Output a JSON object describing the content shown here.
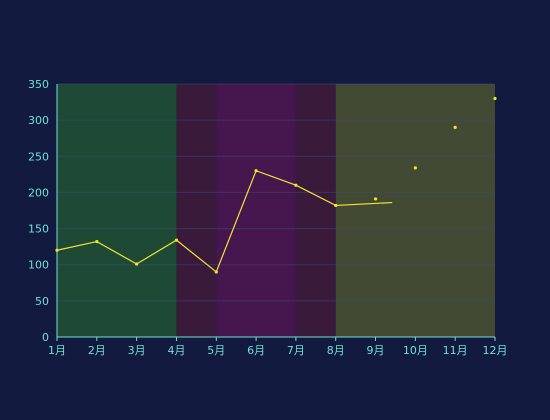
{
  "colors": {
    "background": "#131a3f",
    "axis_line": "#6fe0d6",
    "tick_label": "#6fe0d6",
    "grid": "#3a4a78",
    "line": "#f1e533",
    "point": "#f1e533"
  },
  "chart_data": {
    "type": "line",
    "title": "",
    "xlabel": "",
    "ylabel": "",
    "categories": [
      "1月",
      "2月",
      "3月",
      "4月",
      "5月",
      "6月",
      "7月",
      "8月",
      "9月",
      "10月",
      "11月",
      "12月"
    ],
    "ylim": [
      0,
      350
    ],
    "yticks": [
      0,
      50,
      100,
      150,
      200,
      250,
      300,
      350
    ],
    "grid": true,
    "series": [
      {
        "name": "",
        "values": [
          120,
          132,
          101,
          134,
          90,
          230,
          210,
          182,
          191,
          234,
          290,
          330
        ],
        "connected_until_index": 7,
        "extends_to_x": 8.42,
        "extend_value": 186
      }
    ],
    "bands": [
      {
        "from": 0,
        "to": 3,
        "color": "#1e4a35"
      },
      {
        "from": 3,
        "to": 4,
        "color": "#3a1a3a"
      },
      {
        "from": 4,
        "to": 6,
        "color": "#46174e"
      },
      {
        "from": 6,
        "to": 7,
        "color": "#3a1a3a"
      },
      {
        "from": 7,
        "to": 11,
        "color": "#434a34"
      }
    ]
  }
}
